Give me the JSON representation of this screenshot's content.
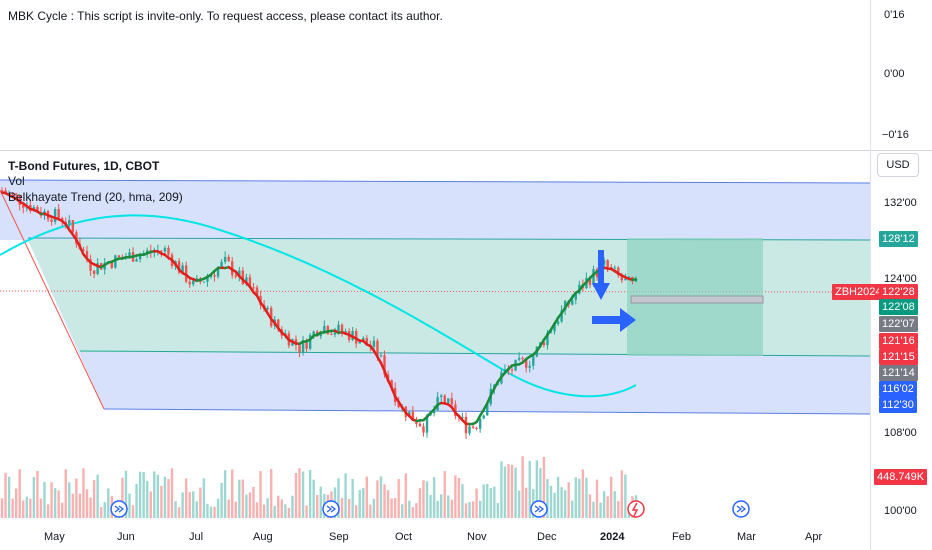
{
  "indicator_pane": {
    "title": "MBK Cycle : This script is invite-only. To request access, please contact its author.",
    "ticks": [
      "0'16",
      "0'00",
      "−0'16"
    ]
  },
  "main_pane": {
    "symbol_title": "T-Bond Futures, 1D, CBOT",
    "vol_label": "Vol",
    "trend_label": "Belkhayate Trend (20, hma, 209)",
    "currency_button": "USD",
    "price_ticks": [
      "132'00",
      "124'00",
      "108'00",
      "100'00"
    ],
    "price_tags": [
      {
        "text": "128'12",
        "color": "#26a69a"
      },
      {
        "text": "ZBH2024",
        "color": "#f23645"
      },
      {
        "text": "122'28",
        "color": "#f23645"
      },
      {
        "text": "122'08",
        "color": "#089981"
      },
      {
        "text": "122'07",
        "color": "#787b86"
      },
      {
        "text": "121'16",
        "color": "#f23645"
      },
      {
        "text": "121'15",
        "color": "#f23645"
      },
      {
        "text": "121'14",
        "color": "#787b86"
      },
      {
        "text": "116'02",
        "color": "#2962ff"
      },
      {
        "text": "112'30",
        "color": "#2962ff"
      },
      {
        "text": "448.749K",
        "color": "#f23645"
      }
    ],
    "time_ticks": [
      "May",
      "Jun",
      "Jul",
      "Aug",
      "Sep",
      "Oct",
      "Nov",
      "Dec",
      "2024",
      "Feb",
      "Mar",
      "Apr"
    ],
    "colors": {
      "up": "#26a69a",
      "down": "#ef5350",
      "channel_outer": "#b7c8f7",
      "channel_inner": "#c8eadf",
      "cycle_line": "#00e5e5",
      "target_box": "#8fd3c3",
      "arrow": "#2962ff"
    }
  },
  "chart_data": {
    "type": "candlestick",
    "title": "T-Bond Futures, 1D, CBOT",
    "xlabel": "",
    "ylabel": "",
    "x_ticks": [
      "May",
      "Jun",
      "Jul",
      "Aug",
      "Sep",
      "Oct",
      "Nov",
      "Dec",
      "2024",
      "Feb",
      "Mar",
      "Apr"
    ],
    "y_ticks": [
      "132'00",
      "124'00",
      "108'00",
      "100'00"
    ],
    "last_price": "122'28",
    "close_path": [
      {
        "date": "2023-04-24",
        "price": 133.0
      },
      {
        "date": "2023-05-10",
        "price": 130.8
      },
      {
        "date": "2023-05-20",
        "price": 130.0
      },
      {
        "date": "2023-05-31",
        "price": 125.0
      },
      {
        "date": "2023-06-15",
        "price": 126.2
      },
      {
        "date": "2023-06-30",
        "price": 126.8
      },
      {
        "date": "2023-07-12",
        "price": 123.0
      },
      {
        "date": "2023-07-25",
        "price": 125.5
      },
      {
        "date": "2023-08-05",
        "price": 122.6
      },
      {
        "date": "2023-08-15",
        "price": 118.8
      },
      {
        "date": "2023-08-25",
        "price": 116.6
      },
      {
        "date": "2023-09-02",
        "price": 119.0
      },
      {
        "date": "2023-09-15",
        "price": 118.0
      },
      {
        "date": "2023-09-25",
        "price": 116.5
      },
      {
        "date": "2023-10-05",
        "price": 110.5
      },
      {
        "date": "2023-10-15",
        "price": 108.5
      },
      {
        "date": "2023-10-22",
        "price": 111.5
      },
      {
        "date": "2023-11-01",
        "price": 108.5
      },
      {
        "date": "2023-11-05",
        "price": 108.6
      },
      {
        "date": "2023-11-15",
        "price": 113.8
      },
      {
        "date": "2023-11-28",
        "price": 115.5
      },
      {
        "date": "2023-12-08",
        "price": 119.5
      },
      {
        "date": "2023-12-20",
        "price": 123.5
      },
      {
        "date": "2023-12-28",
        "price": 125.2
      },
      {
        "date": "2024-01-05",
        "price": 123.5
      },
      {
        "date": "2024-01-10",
        "price": 122.9
      }
    ],
    "volume_last": "448.749K"
  }
}
